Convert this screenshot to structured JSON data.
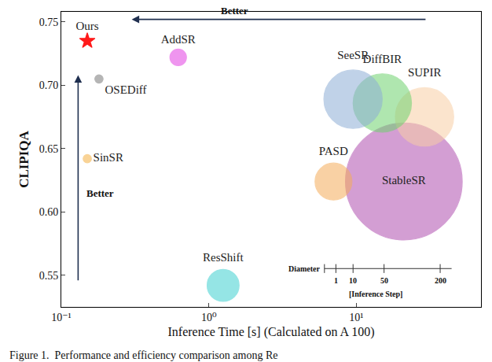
{
  "chart_data": {
    "type": "scatter",
    "x_label": "Inference Time [s] (Calculated on A 100)",
    "y_label": "CLIPIQA",
    "caption": "Figure 1.  Performance and efficiency comparison among Re",
    "log": "x",
    "grid": false,
    "xlim": [
      0.1,
      70
    ],
    "xticks": [
      {
        "value": 0.1,
        "label": "10⁻¹"
      },
      {
        "value": 1,
        "label": "10⁰"
      },
      {
        "value": 10,
        "label": "10¹"
      }
    ],
    "ylim": [
      0.525,
      0.758
    ],
    "yticks": [
      0.55,
      {
        "value": 0.6,
        "label": "0.60"
      },
      0.65,
      {
        "value": 0.7,
        "label": "0.70"
      },
      0.75
    ],
    "series": [
      {
        "name": "StableSR",
        "color": "#b04fb0",
        "marker": "circle",
        "x": [
          21
        ],
        "values": [
          0.624
        ],
        "steps": [
          200
        ]
      },
      {
        "name": "SUPIR",
        "color": "#f9cfa6",
        "marker": "circle",
        "x": [
          29
        ],
        "values": [
          0.675
        ],
        "steps": [
          50
        ]
      },
      {
        "name": "DiffBIR",
        "color": "#6fd26f",
        "marker": "circle",
        "x": [
          15
        ],
        "values": [
          0.686
        ],
        "steps": [
          50
        ]
      },
      {
        "name": "SeeSR",
        "color": "#8eaed6",
        "marker": "circle",
        "x": [
          9.5
        ],
        "values": [
          0.689
        ],
        "steps": [
          50
        ]
      },
      {
        "name": "PASD",
        "color": "#f5ad5a",
        "marker": "circle",
        "x": [
          7
        ],
        "values": [
          0.624
        ],
        "steps": [
          20
        ]
      },
      {
        "name": "ResShift",
        "color": "#3fd0d0",
        "marker": "circle",
        "x": [
          1.25
        ],
        "values": [
          0.542
        ],
        "steps": [
          15
        ]
      },
      {
        "name": "AddSR",
        "color": "#e23fe2",
        "marker": "circle",
        "x": [
          0.62
        ],
        "values": [
          0.722
        ],
        "steps": [
          4
        ]
      },
      {
        "name": "SinSR",
        "color": "#f5b041",
        "marker": "circle",
        "x": [
          0.15
        ],
        "values": [
          0.642
        ],
        "steps": [
          1
        ]
      },
      {
        "name": "OSEDiff",
        "color": "#7a7a7a",
        "marker": "circle",
        "x": [
          0.18
        ],
        "values": [
          0.705
        ],
        "steps": [
          1
        ]
      },
      {
        "name": "Ours",
        "color": "#ff1a1a",
        "marker": "star",
        "x": [
          0.15
        ],
        "values": [
          0.735
        ],
        "steps": [
          1
        ]
      }
    ],
    "arrows": [
      {
        "from": [
          30,
          0.752
        ],
        "to": [
          0.3,
          0.752
        ]
      },
      {
        "from": [
          0.13,
          0.545
        ],
        "to": [
          0.13,
          0.708
        ]
      }
    ],
    "annotations": [
      {
        "text": "Better",
        "x": 1.5,
        "y": 0.752
      },
      {
        "text": "Better",
        "x": 0.145,
        "y": 0.615
      }
    ],
    "diameter_legend": {
      "title": "Diameter",
      "ticks": [
        1,
        10,
        50,
        200
      ],
      "label": "[Inference Step]"
    }
  }
}
